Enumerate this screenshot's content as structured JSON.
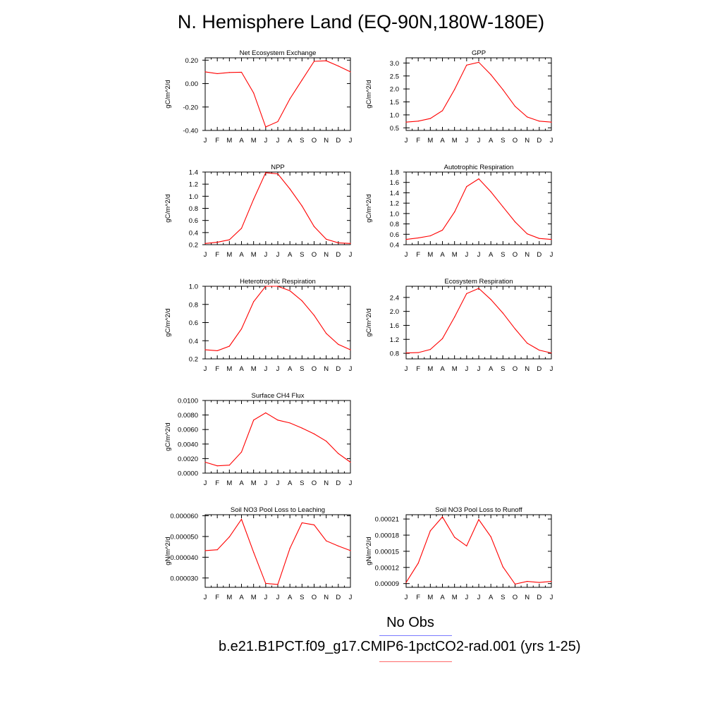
{
  "page": {
    "title": "N. Hemisphere Land (EQ-90N,180W-180E)"
  },
  "legend": {
    "obs_label": "No Obs",
    "obs_color": "#7a7aff",
    "model_label": "b.e21.B1PCT.f09_g17.CMIP6-1pctCO2-rad.001 (yrs 1-25)",
    "model_color": "#ff0000"
  },
  "chart_data": [
    {
      "type": "line",
      "title": "Net Ecosystem Exchange",
      "ylabel": "gC/m^2/d",
      "x": [
        "J",
        "F",
        "M",
        "A",
        "M",
        "J",
        "J",
        "A",
        "S",
        "O",
        "N",
        "D",
        "J"
      ],
      "series": [
        {
          "values": [
            0.1,
            0.085,
            0.095,
            0.097,
            -0.08,
            -0.37,
            -0.325,
            -0.13,
            0.03,
            0.19,
            0.195,
            0.15,
            0.1
          ]
        }
      ],
      "ylim": [
        -0.4,
        0.22
      ],
      "yticks": [
        "0.20",
        "0.00",
        "-0.20",
        "-0.40"
      ],
      "ytickvals": [
        0.2,
        0.0,
        -0.2,
        -0.4
      ]
    },
    {
      "type": "line",
      "title": "GPP",
      "ylabel": "gC/m^2/d",
      "x": [
        "J",
        "F",
        "M",
        "A",
        "M",
        "J",
        "J",
        "A",
        "S",
        "O",
        "N",
        "D",
        "J"
      ],
      "series": [
        {
          "values": [
            0.72,
            0.76,
            0.86,
            1.16,
            1.98,
            2.92,
            3.03,
            2.55,
            1.97,
            1.33,
            0.92,
            0.76,
            0.72
          ]
        }
      ],
      "ylim": [
        0.4,
        3.2
      ],
      "yticks": [
        "3.0",
        "2.5",
        "2.0",
        "1.5",
        "1.0",
        "0.5"
      ],
      "ytickvals": [
        3.0,
        2.5,
        2.0,
        1.5,
        1.0,
        0.5
      ]
    },
    {
      "type": "line",
      "title": "NPP",
      "ylabel": "gC/m^2/d",
      "x": [
        "J",
        "F",
        "M",
        "A",
        "M",
        "J",
        "J",
        "A",
        "S",
        "O",
        "N",
        "D",
        "J"
      ],
      "series": [
        {
          "values": [
            0.22,
            0.24,
            0.28,
            0.47,
            0.95,
            1.39,
            1.37,
            1.12,
            0.84,
            0.5,
            0.29,
            0.23,
            0.22
          ]
        }
      ],
      "ylim": [
        0.2,
        1.4
      ],
      "yticks": [
        "1.4",
        "1.2",
        "1.0",
        "0.8",
        "0.6",
        "0.4",
        "0.2"
      ],
      "ytickvals": [
        1.4,
        1.2,
        1.0,
        0.8,
        0.6,
        0.4,
        0.2
      ]
    },
    {
      "type": "line",
      "title": "Autotrophic Respiration",
      "ylabel": "gC/m^2/d",
      "x": [
        "J",
        "F",
        "M",
        "A",
        "M",
        "J",
        "J",
        "A",
        "S",
        "O",
        "N",
        "D",
        "J"
      ],
      "series": [
        {
          "values": [
            0.5,
            0.53,
            0.57,
            0.68,
            1.03,
            1.52,
            1.67,
            1.42,
            1.13,
            0.84,
            0.61,
            0.52,
            0.5
          ]
        }
      ],
      "ylim": [
        0.4,
        1.8
      ],
      "yticks": [
        "1.8",
        "1.6",
        "1.4",
        "1.2",
        "1.0",
        "0.8",
        "0.6",
        "0.4"
      ],
      "ytickvals": [
        1.8,
        1.6,
        1.4,
        1.2,
        1.0,
        0.8,
        0.6,
        0.4
      ]
    },
    {
      "type": "line",
      "title": "Heterotrophic Respiration",
      "ylabel": "gC/m^2/d",
      "x": [
        "J",
        "F",
        "M",
        "A",
        "M",
        "J",
        "J",
        "A",
        "S",
        "O",
        "N",
        "D",
        "J"
      ],
      "series": [
        {
          "values": [
            0.3,
            0.29,
            0.34,
            0.53,
            0.83,
            1.0,
            1.0,
            0.95,
            0.84,
            0.68,
            0.48,
            0.36,
            0.3
          ]
        }
      ],
      "ylim": [
        0.2,
        1.0
      ],
      "yticks": [
        "1.0",
        "0.8",
        "0.6",
        "0.4",
        "0.2"
      ],
      "ytickvals": [
        1.0,
        0.8,
        0.6,
        0.4,
        0.2
      ]
    },
    {
      "type": "line",
      "title": "Ecosystem Respiration",
      "ylabel": "gC/m^2/d",
      "x": [
        "J",
        "F",
        "M",
        "A",
        "M",
        "J",
        "J",
        "A",
        "S",
        "O",
        "N",
        "D",
        "J"
      ],
      "series": [
        {
          "values": [
            0.81,
            0.82,
            0.91,
            1.22,
            1.84,
            2.51,
            2.66,
            2.34,
            1.95,
            1.5,
            1.09,
            0.89,
            0.81
          ]
        }
      ],
      "ylim": [
        0.64,
        2.72
      ],
      "yticks": [
        "2.4",
        "2.0",
        "1.6",
        "1.2",
        "0.8"
      ],
      "ytickvals": [
        2.4,
        2.0,
        1.6,
        1.2,
        0.8
      ]
    },
    {
      "type": "line",
      "title": "Surface CH4 Flux",
      "ylabel": "gC/m^2/d",
      "x": [
        "J",
        "F",
        "M",
        "A",
        "M",
        "J",
        "J",
        "A",
        "S",
        "O",
        "N",
        "D",
        "J"
      ],
      "series": [
        {
          "values": [
            0.0015,
            0.001,
            0.0011,
            0.0029,
            0.0073,
            0.0083,
            0.0073,
            0.0069,
            0.0062,
            0.0054,
            0.0044,
            0.0027,
            0.0015
          ]
        }
      ],
      "ylim": [
        0.0,
        0.01
      ],
      "yticks": [
        "0.0100",
        "0.0080",
        "0.0060",
        "0.0040",
        "0.0020",
        "0.0000"
      ],
      "ytickvals": [
        0.01,
        0.008,
        0.006,
        0.004,
        0.002,
        0.0
      ]
    },
    {
      "type": "line",
      "title": "Soil NO3 Pool Loss to Leaching",
      "ylabel": "gN/m^2/d",
      "x": [
        "J",
        "F",
        "M",
        "A",
        "M",
        "J",
        "J",
        "A",
        "S",
        "O",
        "N",
        "D",
        "J"
      ],
      "series": [
        {
          "values": [
            4.32e-05,
            4.36e-05,
            4.98e-05,
            5.83e-05,
            4.24e-05,
            2.74e-05,
            2.69e-05,
            4.43e-05,
            5.66e-05,
            5.56e-05,
            4.79e-05,
            4.54e-05,
            4.32e-05
          ]
        }
      ],
      "ylim": [
        2.55e-05,
        6.05e-05
      ],
      "yticks": [
        "0.000060",
        "0.000050",
        "0.000040",
        "0.000030"
      ],
      "ytickvals": [
        6e-05,
        5e-05,
        4e-05,
        3e-05
      ]
    },
    {
      "type": "line",
      "title": "Soil NO3 Pool Loss to Runoff",
      "ylabel": "gN/m^2/d",
      "x": [
        "J",
        "F",
        "M",
        "A",
        "M",
        "J",
        "J",
        "A",
        "S",
        "O",
        "N",
        "D",
        "J"
      ],
      "series": [
        {
          "values": [
            9.2e-05,
            0.000128,
            0.000188,
            0.000214,
            0.000176,
            0.00016,
            0.000209,
            0.000177,
            0.000121,
            8.9e-05,
            9.4e-05,
            9.2e-05,
            9.4e-05
          ]
        }
      ],
      "ylim": [
        8.3e-05,
        0.000218
      ],
      "yticks": [
        "0.00021",
        "0.00018",
        "0.00015",
        "0.00012",
        "0.00009"
      ],
      "ytickvals": [
        0.00021,
        0.00018,
        0.00015,
        0.00012,
        9e-05
      ]
    }
  ]
}
